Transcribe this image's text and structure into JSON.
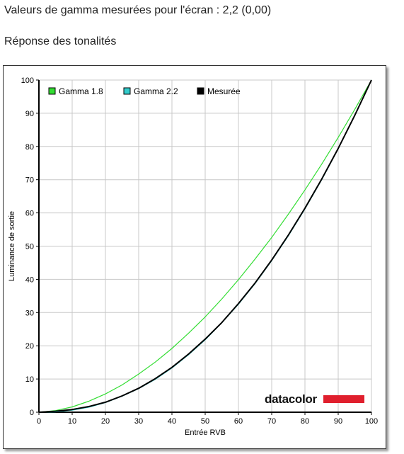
{
  "header": {
    "gamma_line": "Valeurs de gamma mesurées pour l'écran : 2,2 (0,00)",
    "tone_title": "Réponse des tonalités"
  },
  "logo": {
    "text": "datacolor",
    "bar_color": "#e01f2d"
  },
  "chart_data": {
    "type": "line",
    "xlabel": "Entrée RVB",
    "ylabel": "Luminance de sortie",
    "xlim": [
      0,
      100
    ],
    "ylim": [
      0,
      100
    ],
    "x_ticks": [
      0,
      10,
      20,
      30,
      40,
      50,
      60,
      70,
      80,
      90,
      100
    ],
    "y_ticks": [
      0,
      10,
      20,
      30,
      40,
      50,
      60,
      70,
      80,
      90,
      100
    ],
    "grid": true,
    "legend_position": "top-left",
    "x": [
      0,
      5,
      10,
      15,
      20,
      25,
      30,
      35,
      40,
      45,
      50,
      55,
      60,
      65,
      70,
      75,
      80,
      85,
      90,
      95,
      100
    ],
    "series": [
      {
        "name": "Gamma 1.8",
        "color": "#33dd33",
        "values": [
          0,
          0.5,
          1.6,
          3.3,
          5.5,
          8.2,
          11.5,
          15.1,
          19.2,
          23.8,
          28.7,
          34.1,
          39.9,
          46.1,
          52.6,
          59.6,
          66.9,
          74.6,
          82.7,
          91.2,
          100
        ]
      },
      {
        "name": "Gamma 2.2",
        "color": "#33cccc",
        "values": [
          0,
          0.1,
          0.6,
          1.5,
          2.9,
          4.8,
          7.1,
          9.9,
          13.3,
          17.3,
          21.8,
          26.9,
          32.5,
          38.7,
          45.6,
          53.1,
          61.2,
          69.9,
          79.3,
          89.3,
          100
        ]
      },
      {
        "name": "Mesurée",
        "color": "#000000",
        "values": [
          0,
          0.3,
          0.8,
          1.7,
          3.0,
          4.9,
          7.2,
          10.1,
          13.5,
          17.5,
          22.0,
          27.0,
          32.7,
          38.9,
          45.8,
          53.3,
          61.4,
          70.1,
          79.4,
          89.4,
          100
        ]
      }
    ]
  }
}
